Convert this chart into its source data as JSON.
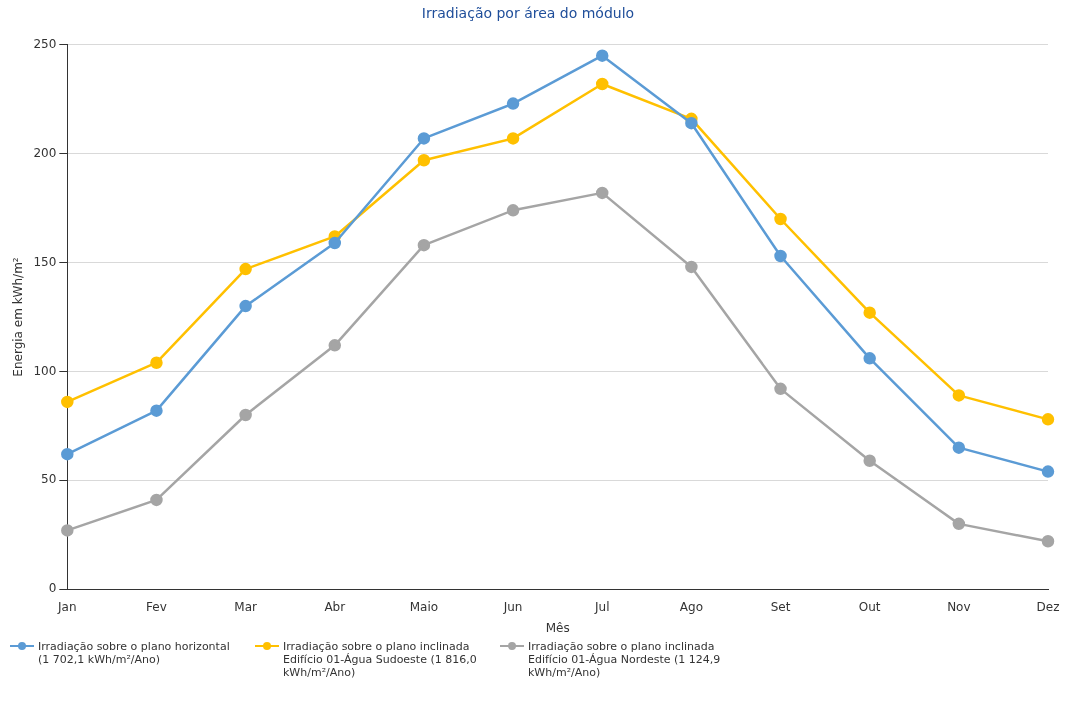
{
  "chart_data": {
    "type": "line",
    "title": "Irradiação por área do módulo",
    "xlabel": "Mês",
    "ylabel": "Energia em kWh/m²",
    "categories": [
      "Jan",
      "Fev",
      "Mar",
      "Abr",
      "Maio",
      "Jun",
      "Jul",
      "Ago",
      "Set",
      "Out",
      "Nov",
      "Dez"
    ],
    "series": [
      {
        "name": "Irradiação sobre o plano horizontal (1 702,1 kWh/m²/Ano)",
        "color": "#5b9bd5",
        "values": [
          62,
          82,
          130,
          159,
          207,
          223,
          245,
          214,
          153,
          106,
          65,
          54
        ]
      },
      {
        "name": "Irradiação sobre o plano inclinada Edifício 01-Água Sudoeste (1 816,0 kWh/m²/Ano)",
        "color": "#ffc000",
        "values": [
          86,
          104,
          147,
          162,
          197,
          207,
          232,
          216,
          170,
          127,
          89,
          78
        ]
      },
      {
        "name": "Irradiação sobre o plano inclinada Edifício 01-Água Nordeste (1 124,9 kWh/m²/Ano)",
        "color": "#a5a5a5",
        "values": [
          27,
          41,
          80,
          112,
          158,
          174,
          182,
          148,
          92,
          59,
          30,
          22
        ]
      }
    ],
    "ylim": [
      0,
      250
    ],
    "yticks": [
      0,
      50,
      100,
      150,
      200,
      250
    ],
    "grid": "y",
    "legend": "bottom left",
    "marker": "circle",
    "line_style": "solid"
  }
}
